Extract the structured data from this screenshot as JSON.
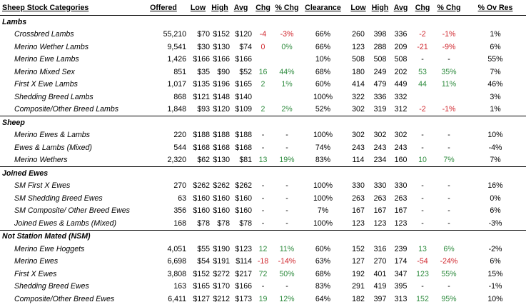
{
  "headers": [
    "Sheep Stock Categories",
    "Offered",
    "Low",
    "High",
    "Avg",
    "Chg",
    "% Chg",
    "Clearance",
    "Low",
    "High",
    "Avg",
    "Chg",
    "% Chg",
    "% Ov Res"
  ],
  "sections": [
    {
      "name": "Lambs",
      "rows": [
        {
          "c": [
            "Crossbred Lambs",
            "55,210",
            "$70",
            "$152",
            "$120",
            "-4",
            "-3%",
            "66%",
            "260",
            "398",
            "336",
            "-2",
            "-1%",
            "1%"
          ],
          "k": [
            "",
            "",
            "",
            "",
            "",
            "r",
            "r",
            "",
            "",
            "",
            "",
            "r",
            "r",
            ""
          ]
        },
        {
          "c": [
            "Merino Wether Lambs",
            "9,541",
            "$30",
            "$130",
            "$74",
            "0",
            "0%",
            "66%",
            "123",
            "288",
            "209",
            "-21",
            "-9%",
            "6%"
          ],
          "k": [
            "",
            "",
            "",
            "",
            "",
            "r",
            "g",
            "",
            "",
            "",
            "",
            "r",
            "r",
            ""
          ]
        },
        {
          "c": [
            "Merino Ewe Lambs",
            "1,426",
            "$166",
            "$166",
            "$166",
            "",
            "",
            "10%",
            "508",
            "508",
            "508",
            "-",
            "-",
            "55%"
          ],
          "k": [
            "",
            "",
            "",
            "",
            "",
            "",
            "",
            "",
            "",
            "",
            "",
            "",
            "",
            ""
          ]
        },
        {
          "c": [
            "Merino Mixed Sex",
            "851",
            "$35",
            "$90",
            "$52",
            "16",
            "44%",
            "68%",
            "180",
            "249",
            "202",
            "53",
            "35%",
            "7%"
          ],
          "k": [
            "",
            "",
            "",
            "",
            "",
            "g",
            "g",
            "",
            "",
            "",
            "",
            "g",
            "g",
            ""
          ]
        },
        {
          "c": [
            "First X Ewe Lambs",
            "1,017",
            "$135",
            "$196",
            "$165",
            "2",
            "1%",
            "60%",
            "414",
            "479",
            "449",
            "44",
            "11%",
            "46%"
          ],
          "k": [
            "",
            "",
            "",
            "",
            "",
            "g",
            "g",
            "",
            "",
            "",
            "",
            "g",
            "g",
            ""
          ]
        },
        {
          "c": [
            "Shedding Breed Lambs",
            "868",
            "$121",
            "$148",
            "$140",
            "",
            "",
            "100%",
            "322",
            "336",
            "332",
            "",
            "",
            "3%"
          ],
          "k": [
            "",
            "",
            "",
            "",
            "",
            "",
            "",
            "",
            "",
            "",
            "",
            "",
            "",
            ""
          ]
        },
        {
          "c": [
            "Composite/Other Breed Lambs",
            "1,848",
            "$93",
            "$120",
            "$109",
            "2",
            "2%",
            "52%",
            "302",
            "319",
            "312",
            "-2",
            "-1%",
            "1%"
          ],
          "k": [
            "",
            "",
            "",
            "",
            "",
            "g",
            "g",
            "",
            "",
            "",
            "",
            "r",
            "r",
            ""
          ]
        }
      ]
    },
    {
      "name": "Sheep",
      "rows": [
        {
          "c": [
            "Merino Ewes & Lambs",
            "220",
            "$188",
            "$188",
            "$188",
            "-",
            "-",
            "100%",
            "302",
            "302",
            "302",
            "-",
            "-",
            "10%"
          ],
          "k": [
            "",
            "",
            "",
            "",
            "",
            "",
            "",
            "",
            "",
            "",
            "",
            "",
            "",
            ""
          ]
        },
        {
          "c": [
            "Ewes & Lambs (Mixed)",
            "544",
            "$168",
            "$168",
            "$168",
            "-",
            "-",
            "74%",
            "243",
            "243",
            "243",
            "-",
            "-",
            "-4%"
          ],
          "k": [
            "",
            "",
            "",
            "",
            "",
            "",
            "",
            "",
            "",
            "",
            "",
            "",
            "",
            ""
          ]
        },
        {
          "c": [
            "Merino Wethers",
            "2,320",
            "$62",
            "$130",
            "$81",
            "13",
            "19%",
            "83%",
            "114",
            "234",
            "160",
            "10",
            "7%",
            "7%"
          ],
          "k": [
            "",
            "",
            "",
            "",
            "",
            "g",
            "g",
            "",
            "",
            "",
            "",
            "g",
            "g",
            ""
          ]
        }
      ]
    },
    {
      "name": "Joined Ewes",
      "rows": [
        {
          "c": [
            "SM First X Ewes",
            "270",
            "$262",
            "$262",
            "$262",
            "-",
            "-",
            "100%",
            "330",
            "330",
            "330",
            "-",
            "-",
            "16%"
          ],
          "k": [
            "",
            "",
            "",
            "",
            "",
            "",
            "",
            "",
            "",
            "",
            "",
            "",
            "",
            ""
          ]
        },
        {
          "c": [
            "SM Shedding Breed Ewes",
            "63",
            "$160",
            "$160",
            "$160",
            "-",
            "-",
            "100%",
            "263",
            "263",
            "263",
            "-",
            "-",
            "0%"
          ],
          "k": [
            "",
            "",
            "",
            "",
            "",
            "",
            "",
            "",
            "",
            "",
            "",
            "",
            "",
            ""
          ]
        },
        {
          "c": [
            "SM Composite/ Other Breed Ewes",
            "356",
            "$160",
            "$160",
            "$160",
            "-",
            "-",
            "7%",
            "167",
            "167",
            "167",
            "-",
            "-",
            "6%"
          ],
          "k": [
            "",
            "",
            "",
            "",
            "",
            "",
            "",
            "",
            "",
            "",
            "",
            "",
            "",
            ""
          ]
        },
        {
          "c": [
            "Joined Ewes & Lambs (Mixed)",
            "168",
            "$78",
            "$78",
            "$78",
            "-",
            "-",
            "100%",
            "123",
            "123",
            "123",
            "-",
            "-",
            "-3%"
          ],
          "k": [
            "",
            "",
            "",
            "",
            "",
            "",
            "",
            "",
            "",
            "",
            "",
            "",
            "",
            ""
          ]
        }
      ]
    },
    {
      "name": "Not Station Mated (NSM)",
      "rows": [
        {
          "c": [
            "Merino Ewe Hoggets",
            "4,051",
            "$55",
            "$190",
            "$123",
            "12",
            "11%",
            "60%",
            "152",
            "316",
            "239",
            "13",
            "6%",
            "-2%"
          ],
          "k": [
            "",
            "",
            "",
            "",
            "",
            "g",
            "g",
            "",
            "",
            "",
            "",
            "g",
            "g",
            ""
          ]
        },
        {
          "c": [
            "Merino Ewes",
            "6,698",
            "$54",
            "$191",
            "$114",
            "-18",
            "-14%",
            "63%",
            "127",
            "270",
            "174",
            "-54",
            "-24%",
            "6%"
          ],
          "k": [
            "",
            "",
            "",
            "",
            "",
            "r",
            "r",
            "",
            "",
            "",
            "",
            "r",
            "r",
            ""
          ]
        },
        {
          "c": [
            "First X Ewes",
            "3,808",
            "$152",
            "$272",
            "$217",
            "72",
            "50%",
            "68%",
            "192",
            "401",
            "347",
            "123",
            "55%",
            "15%"
          ],
          "k": [
            "",
            "",
            "",
            "",
            "",
            "g",
            "g",
            "",
            "",
            "",
            "",
            "g",
            "g",
            ""
          ]
        },
        {
          "c": [
            "Shedding Breed Ewes",
            "163",
            "$165",
            "$170",
            "$166",
            "-",
            "-",
            "83%",
            "291",
            "419",
            "395",
            "-",
            "-",
            "-1%"
          ],
          "k": [
            "",
            "",
            "",
            "",
            "",
            "",
            "",
            "",
            "",
            "",
            "",
            "",
            "",
            ""
          ]
        },
        {
          "c": [
            "Composite/Other Breed Ewes",
            "6,411",
            "$127",
            "$212",
            "$173",
            "19",
            "12%",
            "64%",
            "182",
            "397",
            "313",
            "152",
            "95%",
            "10%"
          ],
          "k": [
            "",
            "",
            "",
            "",
            "",
            "g",
            "g",
            "",
            "",
            "",
            "",
            "g",
            "g",
            ""
          ]
        }
      ]
    }
  ]
}
